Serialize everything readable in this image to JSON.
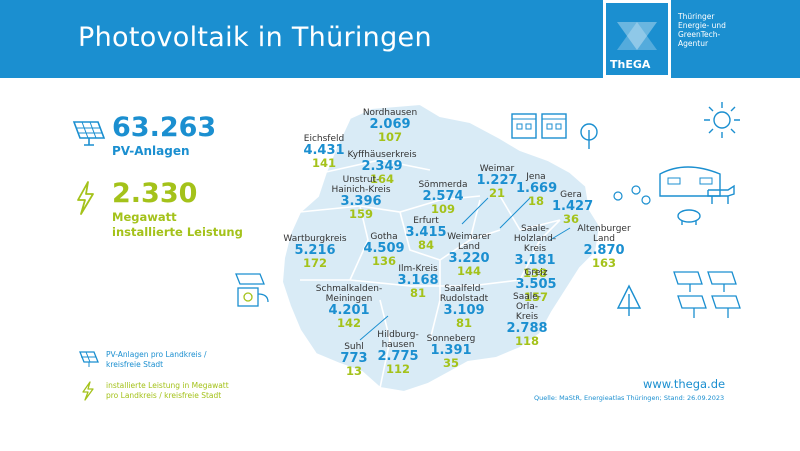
{
  "header": {
    "title": "Photovoltaik in Thüringen",
    "logo_text": "ThEGA",
    "agency_text": "Thüringer\nEnergie- und\nGreenTech-\nAgentur"
  },
  "totals": {
    "installations_value": "63.263",
    "installations_label": "PV-Anlagen",
    "capacity_value": "2.330",
    "capacity_label1": "Megawatt",
    "capacity_label2": "installierte Leistung"
  },
  "districts": [
    {
      "name": "Nordhausen",
      "pv": "2.069",
      "mw": "107"
    },
    {
      "name": "Eichsfeld",
      "pv": "4.431",
      "mw": "141"
    },
    {
      "name": "Kyffhäuserkreis",
      "pv": "2.349",
      "mw": "164"
    },
    {
      "name": "Unstrut-\nHainich-Kreis",
      "pv": "3.396",
      "mw": "159"
    },
    {
      "name": "Sömmerda",
      "pv": "2.574",
      "mw": "109"
    },
    {
      "name": "Weimar",
      "pv": "1.227",
      "mw": "21"
    },
    {
      "name": "Jena",
      "pv": "1.669",
      "mw": "18"
    },
    {
      "name": "Gera",
      "pv": "1.427",
      "mw": "36"
    },
    {
      "name": "Altenburger\nLand",
      "pv": "2.870",
      "mw": "163"
    },
    {
      "name": "Erfurt",
      "pv": "3.415",
      "mw": "84"
    },
    {
      "name": "Wartburgkreis",
      "pv": "5.216",
      "mw": "172"
    },
    {
      "name": "Gotha",
      "pv": "4.509",
      "mw": "136"
    },
    {
      "name": "Weimarer\nLand",
      "pv": "3.220",
      "mw": "144"
    },
    {
      "name": "Saale-\nHolzland-\nKreis",
      "pv": "3.181",
      "mw": "138"
    },
    {
      "name": "Ilm-Kreis",
      "pv": "3.168",
      "mw": "81"
    },
    {
      "name": "Greiz",
      "pv": "3.505",
      "mw": "157"
    },
    {
      "name": "Schmalkalden-\nMeiningen",
      "pv": "4.201",
      "mw": "142"
    },
    {
      "name": "Saalfeld-\nRudolstadt",
      "pv": "3.109",
      "mw": "81"
    },
    {
      "name": "Saale-\nOrla-\nKreis",
      "pv": "2.788",
      "mw": "118"
    },
    {
      "name": "Suhl",
      "pv": "773",
      "mw": "13"
    },
    {
      "name": "Hildburg-\nhausen",
      "pv": "2.775",
      "mw": "112"
    },
    {
      "name": "Sonneberg",
      "pv": "1.391",
      "mw": "35"
    }
  ],
  "legend": {
    "pv_text": "PV-Anlagen pro Landkreis /\nkreisfreie Stadt",
    "mw_text": "installierte Leistung in Megawatt\npro Landkreis / kreisfreie Stadt"
  },
  "footer": {
    "website": "www.thega.de",
    "source": "Quelle: MaStR, Energieatlas Thüringen; Stand: 26.09.2023"
  },
  "colors": {
    "brand_blue": "#1b8fd0",
    "accent_green": "#a4c21a",
    "map_fill": "#d9ebf6"
  },
  "icons": [
    "solar-panel-icon",
    "lightning-icon",
    "house-icon",
    "tree-icon",
    "sun-icon",
    "barn-icon",
    "cow-icon",
    "pig-icon",
    "bird-icon",
    "ev-charger-icon"
  ]
}
